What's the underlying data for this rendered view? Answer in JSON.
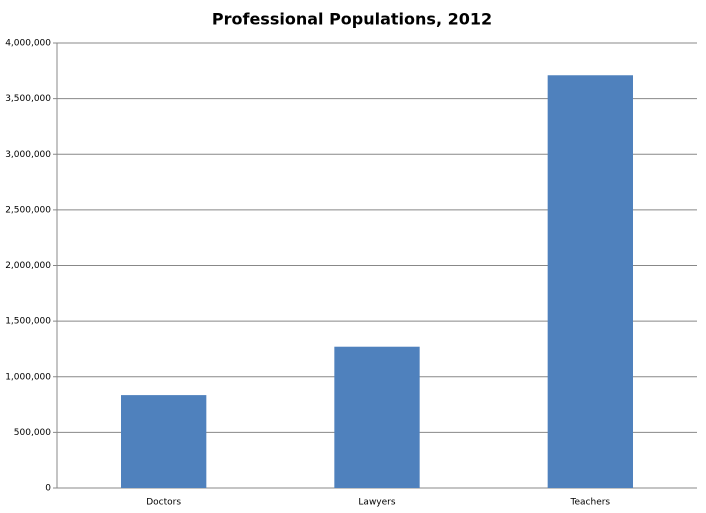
{
  "chart_data": {
    "type": "bar",
    "title": "Professional Populations, 2012",
    "categories": [
      "Doctors",
      "Lawyers",
      "Teachers"
    ],
    "values": [
      835000,
      1270000,
      3710000
    ],
    "color": "#4f81bd",
    "ylim": [
      0,
      4000000
    ],
    "yticks": [
      0,
      {
        "value": 500000,
        "label": "500,000"
      },
      {
        "value": 1000000,
        "label": "1,000,000"
      },
      {
        "value": 1500000,
        "label": "1,500,000"
      },
      {
        "value": 2000000,
        "label": "2,000,000"
      },
      {
        "value": 2500000,
        "label": "2,500,000"
      },
      {
        "value": 3000000,
        "label": "3,000,000"
      },
      {
        "value": 3500000,
        "label": "3,500,000"
      },
      {
        "value": 4000000,
        "label": "4,000,000"
      }
    ],
    "grid": true
  }
}
